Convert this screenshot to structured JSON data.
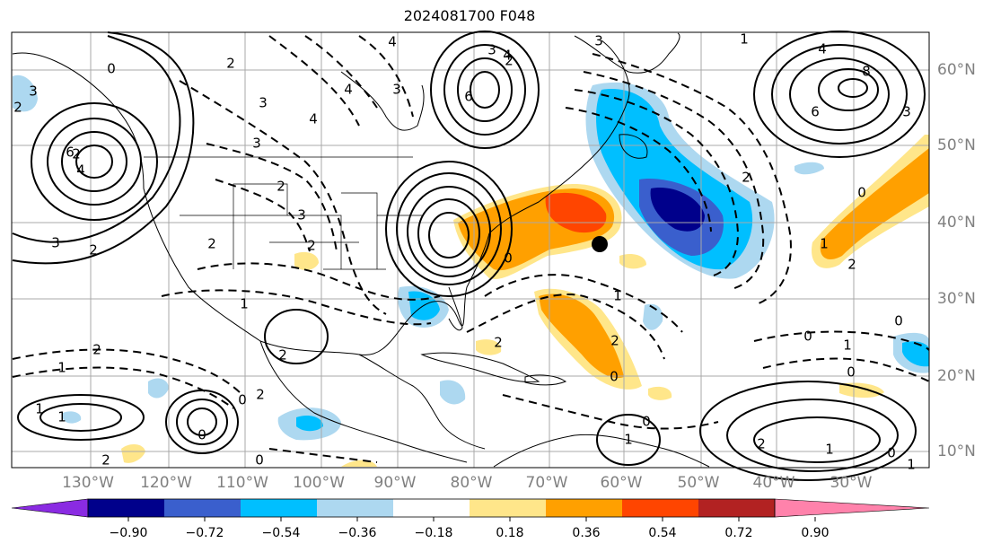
{
  "title": "2024081700 F048",
  "lon_labels": [
    "130°W",
    "120°W",
    "110°W",
    "100°W",
    "90°W",
    "80°W",
    "70°W",
    "60°W",
    "50°W",
    "40°W",
    "30°W"
  ],
  "lat_labels": [
    "60°N",
    "50°N",
    "40°N",
    "30°N",
    "20°N",
    "10°N"
  ],
  "colorbar": {
    "ticks": [
      "−0.90",
      "−0.72",
      "−0.54",
      "−0.36",
      "−0.18",
      "0.18",
      "0.36",
      "0.54",
      "0.72",
      "0.90"
    ],
    "colors": [
      "#8a2be2",
      "#00008b",
      "#3a5fcd",
      "#00bfff",
      "#add8f0",
      "#ffffff",
      "#ffe68a",
      "#ffa000",
      "#ff4500",
      "#b22222",
      "#ff82ab"
    ]
  },
  "contour_labels": [
    "0",
    "2",
    "4",
    "3",
    "2",
    "6",
    "4",
    "2",
    "3",
    "2",
    "3",
    "2",
    "3",
    "2",
    "2",
    "3",
    "4",
    "4",
    "3",
    "6",
    "3",
    "4",
    "2",
    "3",
    "1",
    "4",
    "8",
    "6",
    "3",
    "2",
    "0",
    "2",
    "1",
    "1",
    "2",
    "1",
    "2",
    "0",
    "2",
    "0",
    "1",
    "1",
    "2",
    "0",
    "1",
    "2",
    "0",
    "0",
    "1",
    "0",
    "1",
    "0",
    "0",
    "2",
    "1",
    "0",
    "1",
    "2",
    "0"
  ],
  "marker": {
    "name": "storm-position-marker",
    "lon": -63,
    "lat": 38
  }
}
